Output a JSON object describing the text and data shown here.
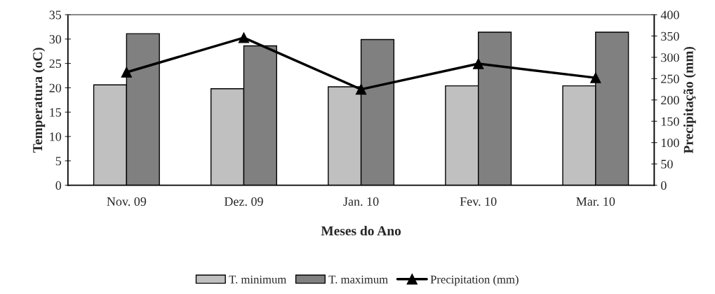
{
  "chart_data": {
    "type": "bar",
    "xlabel": "Meses do Ano",
    "ylabel": "Temperatura (oC)",
    "y2label": "Precipitação (mm)",
    "categories": [
      "Nov. 09",
      "Dez. 09",
      "Jan. 10",
      "Fev. 10",
      "Mar. 10"
    ],
    "series": [
      {
        "name": "T. minimum",
        "color": "#c0c0c0",
        "values": [
          20.6,
          19.8,
          20.2,
          20.4,
          20.4
        ]
      },
      {
        "name": "T. maximum",
        "color": "#808080",
        "values": [
          31.1,
          28.6,
          29.9,
          31.4,
          31.4
        ]
      },
      {
        "name": "Precipitation (mm)",
        "type": "line",
        "axis": "y2",
        "color": "#000000",
        "marker": "triangle",
        "values": [
          265,
          346,
          225,
          285,
          252
        ]
      }
    ],
    "ylim": [
      0,
      35
    ],
    "yticks": [
      0,
      5,
      10,
      15,
      20,
      25,
      30,
      35
    ],
    "y2lim": [
      0,
      400
    ],
    "y2ticks": [
      0,
      50,
      100,
      150,
      200,
      250,
      300,
      350,
      400
    ],
    "grid": false,
    "legend": "bottom"
  }
}
